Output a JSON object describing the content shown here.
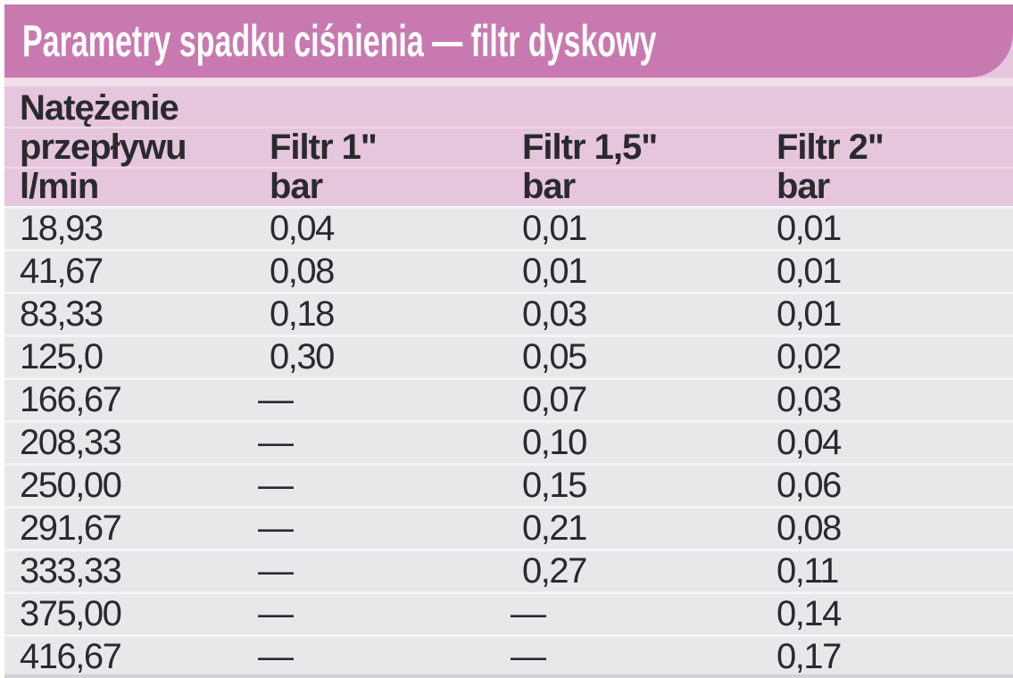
{
  "title": "Parametry spadku ciśnienia — filtr dyskowy",
  "colors": {
    "title_bar": "#c87ab0",
    "title_text": "#ffffff",
    "header_bg": "#e6c6dc",
    "gap_line": "#f3dcea",
    "row_bg": "#e8e8eb",
    "row_separator": "#f5f5f7",
    "text_dark": "#2a2a2e",
    "bottom_edge": "#d2d2d7"
  },
  "chart_data": {
    "type": "table",
    "title": "Parametry spadku ciśnienia — filtr dyskowy",
    "missing_value_symbol": "—",
    "columns": [
      {
        "label": "Natężenie przepływu l/min",
        "label_lines": [
          "Natężenie",
          "przepływu",
          "l/min"
        ]
      },
      {
        "label": "Filtr 1\" bar",
        "label_lines": [
          "",
          "Filtr 1\"",
          "bar"
        ]
      },
      {
        "label": "Filtr 1,5\" bar",
        "label_lines": [
          "",
          "Filtr 1,5\"",
          "bar"
        ]
      },
      {
        "label": "Filtr 2\" bar",
        "label_lines": [
          "",
          "Filtr 2\"",
          "bar"
        ]
      }
    ],
    "rows": [
      [
        "18,93",
        "0,04",
        "0,01",
        "0,01"
      ],
      [
        "41,67",
        "0,08",
        "0,01",
        "0,01"
      ],
      [
        "83,33",
        "0,18",
        "0,03",
        "0,01"
      ],
      [
        "125,0",
        "0,30",
        "0,05",
        "0,02"
      ],
      [
        "166,67",
        "—",
        "0,07",
        "0,03"
      ],
      [
        "208,33",
        "—",
        "0,10",
        "0,04"
      ],
      [
        "250,00",
        "—",
        "0,15",
        "0,06"
      ],
      [
        "291,67",
        "—",
        "0,21",
        "0,08"
      ],
      [
        "333,33",
        "—",
        "0,27",
        "0,11"
      ],
      [
        "375,00",
        "—",
        "—",
        "0,14"
      ],
      [
        "416,67",
        "—",
        "—",
        "0,17"
      ]
    ],
    "units": {
      "flow_rate": "l/min",
      "pressure_drop": "bar"
    }
  }
}
